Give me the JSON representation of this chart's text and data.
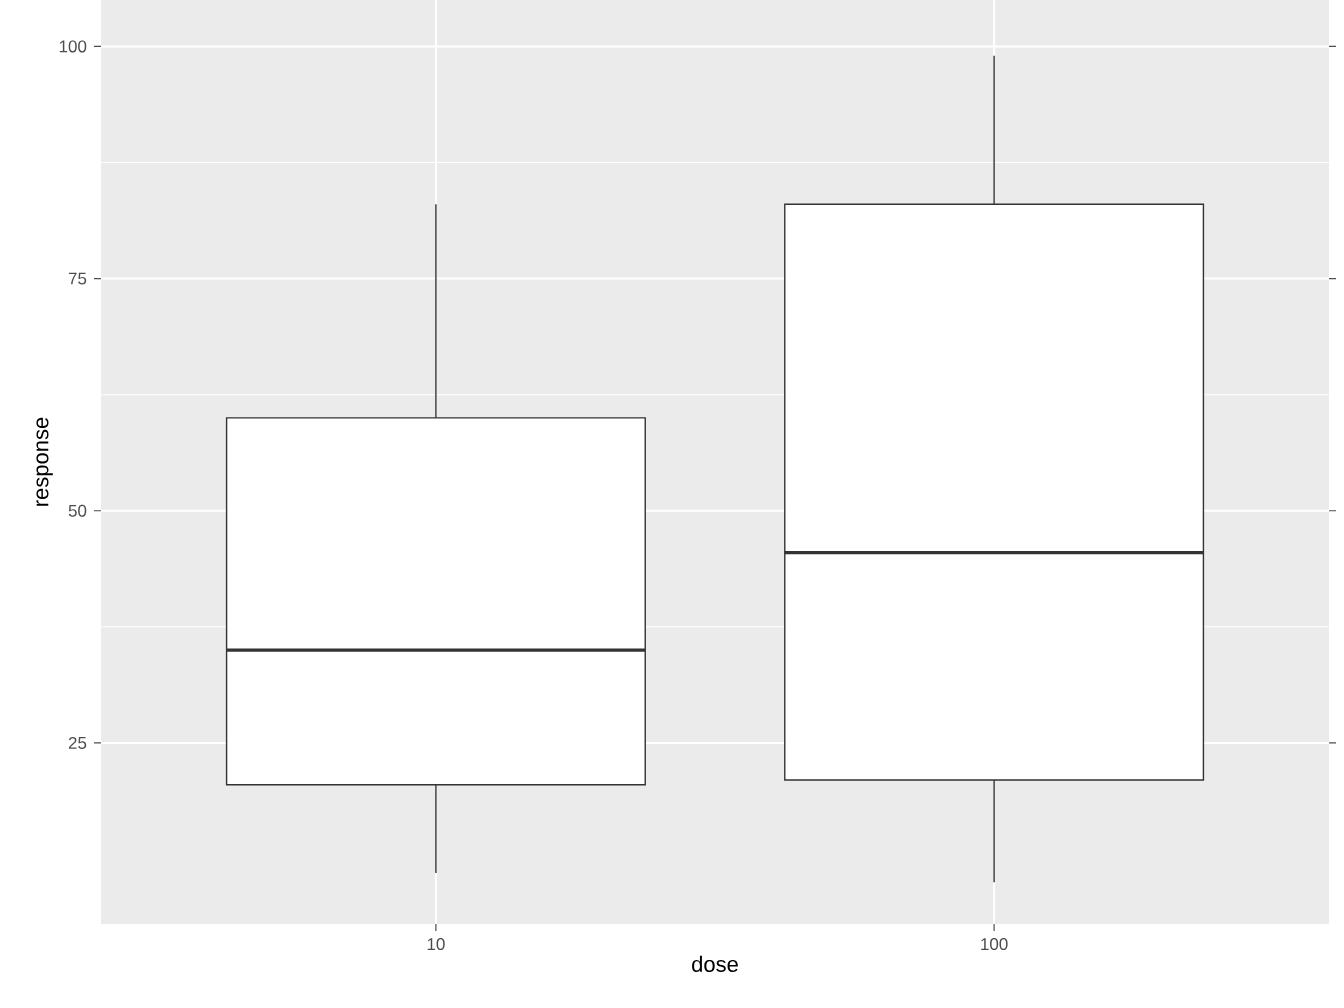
{
  "chart_data": {
    "type": "box",
    "xlabel": "dose",
    "ylabel": "response",
    "categories": [
      "10",
      "100"
    ],
    "boxes": [
      {
        "low": 11,
        "q1": 20.5,
        "median": 35,
        "q3": 60,
        "high": 83
      },
      {
        "low": 10,
        "q1": 21,
        "median": 45.5,
        "q3": 83,
        "high": 99
      }
    ],
    "color": "#333333",
    "ylim": [
      5.5,
      105
    ],
    "yticks": [
      25,
      50,
      75,
      100
    ],
    "grid": true
  }
}
